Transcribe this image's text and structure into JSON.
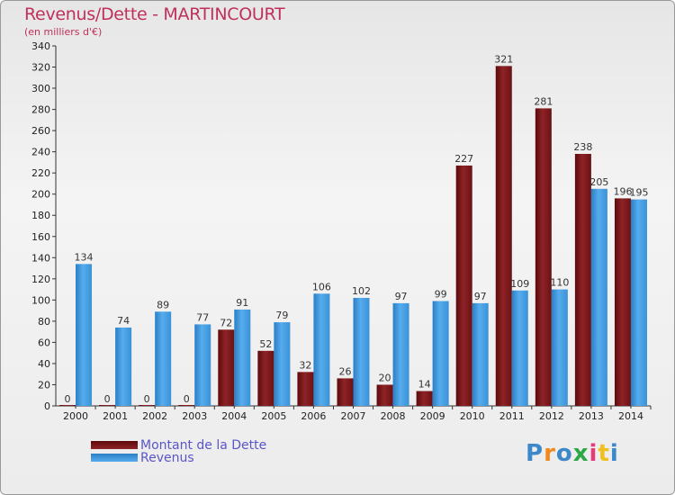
{
  "title": "Revenus/Dette - MARTINCOURT",
  "subtitle": "(en milliers d'€)",
  "logo_text": "Proxiti",
  "colors": {
    "dette": "#7a1618",
    "revenus": "#3d97de",
    "title": "#c0305c",
    "legend_text": "#5a56c8"
  },
  "chart_data": {
    "type": "bar",
    "title": "Revenus/Dette - MARTINCOURT",
    "subtitle": "(en milliers d'€)",
    "categories": [
      "2000",
      "2001",
      "2002",
      "2003",
      "2004",
      "2005",
      "2006",
      "2007",
      "2008",
      "2009",
      "2010",
      "2011",
      "2012",
      "2013",
      "2014"
    ],
    "series": [
      {
        "name": "Montant de la Dette",
        "values": [
          0,
          0,
          0,
          0,
          72,
          52,
          32,
          26,
          20,
          14,
          227,
          321,
          281,
          238,
          196
        ]
      },
      {
        "name": "Revenus",
        "values": [
          134,
          74,
          89,
          77,
          91,
          79,
          106,
          102,
          97,
          99,
          97,
          109,
          110,
          205,
          195
        ]
      }
    ],
    "ylim": [
      0,
      340
    ],
    "yticks": [
      0,
      20,
      40,
      60,
      80,
      100,
      120,
      140,
      160,
      180,
      200,
      220,
      240,
      260,
      280,
      300,
      320,
      340
    ],
    "grid": false,
    "legend_position": "bottom-left"
  }
}
